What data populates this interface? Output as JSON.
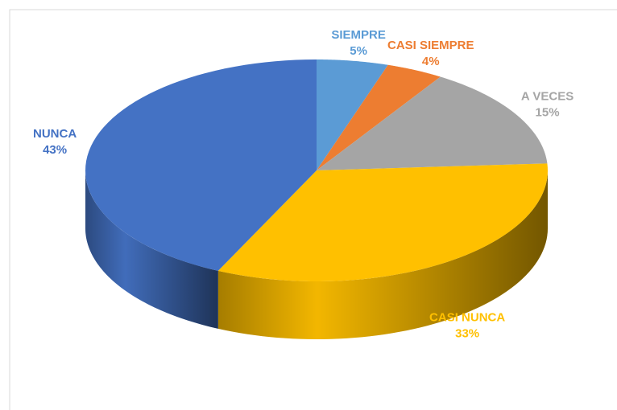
{
  "chart_data": {
    "type": "pie",
    "categories": [
      "SIEMPRE",
      "CASI SIEMPRE",
      "A VECES",
      "CASI NUNCA",
      "NUNCA"
    ],
    "values": [
      5,
      4,
      15,
      33,
      43
    ],
    "value_labels": [
      "5%",
      "4%",
      "15%",
      "33%",
      "43%"
    ],
    "colors": [
      "#5b9bd5",
      "#ed7d31",
      "#a5a5a5",
      "#ffc000",
      "#4472c4"
    ]
  }
}
